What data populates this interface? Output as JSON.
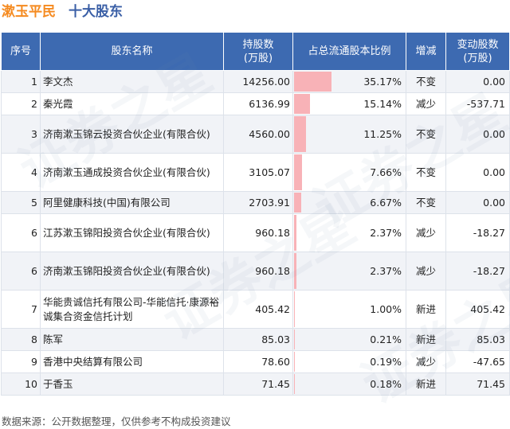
{
  "title": {
    "company": "漱玉平民",
    "subject": "十大股东"
  },
  "table": {
    "headers": {
      "rank": "序号",
      "name": "股东名称",
      "shares_line1": "持股数",
      "shares_line2": "(万股)",
      "ratio": "占总流通股本比例",
      "change": "增减",
      "delta_line1": "变动股数",
      "delta_line2": "(万股)"
    },
    "rows": [
      {
        "rank": "1",
        "name": "李文杰",
        "shares": "14256.00",
        "ratio": "35.17%",
        "ratio_value": 35.17,
        "change": "不变",
        "change_type": "same",
        "delta": "0.00"
      },
      {
        "rank": "2",
        "name": "秦光霞",
        "shares": "6136.99",
        "ratio": "15.14%",
        "ratio_value": 15.14,
        "change": "减少",
        "change_type": "down",
        "delta": "-537.71"
      },
      {
        "rank": "3",
        "name": "济南漱玉锦云投资合伙企业(有限合伙)",
        "shares": "4560.00",
        "ratio": "11.25%",
        "ratio_value": 11.25,
        "change": "不变",
        "change_type": "same",
        "delta": "0.00"
      },
      {
        "rank": "4",
        "name": "济南漱玉通成投资合伙企业(有限合伙)",
        "shares": "3105.07",
        "ratio": "7.66%",
        "ratio_value": 7.66,
        "change": "不变",
        "change_type": "same",
        "delta": "0.00"
      },
      {
        "rank": "5",
        "name": "阿里健康科技(中国)有限公司",
        "shares": "2703.91",
        "ratio": "6.67%",
        "ratio_value": 6.67,
        "change": "不变",
        "change_type": "same",
        "delta": "0.00"
      },
      {
        "rank": "6",
        "name": "江苏漱玉锦阳投资合伙企业(有限合伙)",
        "shares": "960.18",
        "ratio": "2.37%",
        "ratio_value": 2.37,
        "change": "减少",
        "change_type": "down",
        "delta": "-18.27"
      },
      {
        "rank": "6",
        "name": "济南漱玉锦阳投资合伙企业(有限合伙)",
        "shares": "960.18",
        "ratio": "2.37%",
        "ratio_value": 2.37,
        "change": "减少",
        "change_type": "down",
        "delta": "-18.27"
      },
      {
        "rank": "7",
        "name": "华能贵诚信托有限公司-华能信托·康源裕诚集合资金信托计划",
        "shares": "405.42",
        "ratio": "1.00%",
        "ratio_value": 1.0,
        "change": "新进",
        "change_type": "up",
        "delta": "405.42"
      },
      {
        "rank": "8",
        "name": "陈军",
        "shares": "85.03",
        "ratio": "0.21%",
        "ratio_value": 0.21,
        "change": "新进",
        "change_type": "up",
        "delta": "85.03"
      },
      {
        "rank": "9",
        "name": "香港中央结算有限公司",
        "shares": "78.60",
        "ratio": "0.19%",
        "ratio_value": 0.19,
        "change": "减少",
        "change_type": "down",
        "delta": "-47.65"
      },
      {
        "rank": "10",
        "name": "于香玉",
        "shares": "71.45",
        "ratio": "0.18%",
        "ratio_value": 0.18,
        "change": "新进",
        "change_type": "up",
        "delta": "71.45"
      }
    ]
  },
  "watermark": "证券之星",
  "footer": "数据来源：公开数据整理，仅供参考不构成投资建议",
  "colors": {
    "header_bg": "#3d6ab1",
    "title_company": "#f58a1f",
    "title_subject": "#3a5fa6",
    "bar": "#f8b2b7",
    "increase": "#e53935",
    "decrease": "#2e9b3b"
  }
}
